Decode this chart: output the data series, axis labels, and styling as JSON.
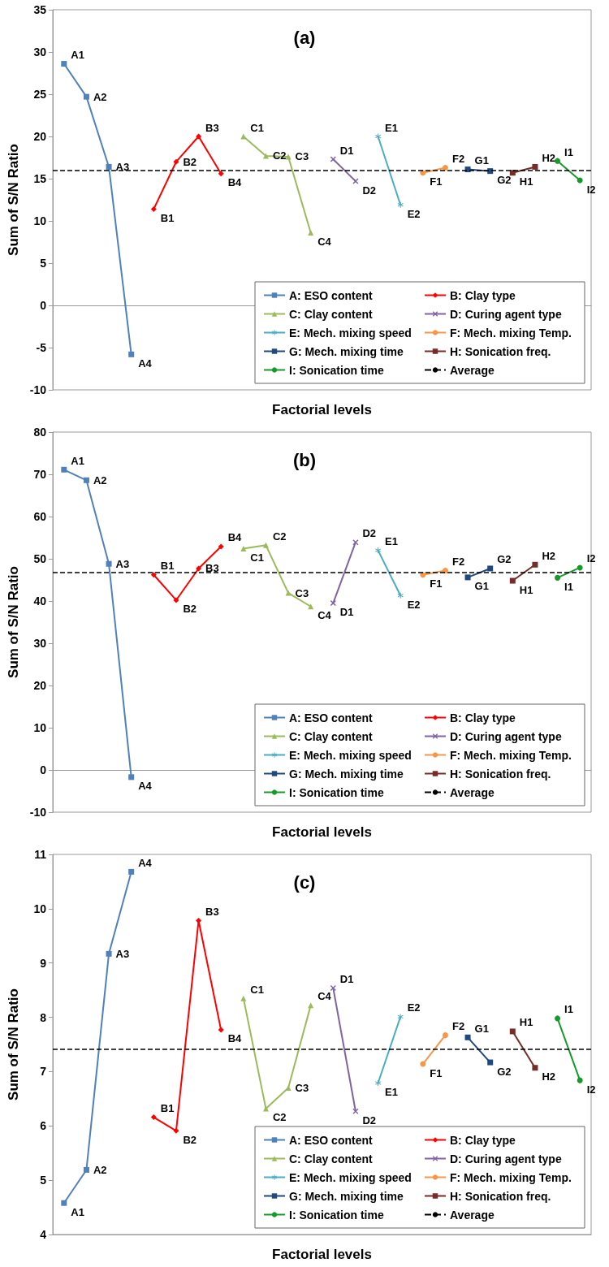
{
  "chart_data": [
    {
      "type": "line",
      "title": "(a)",
      "xlabel": "Factorial levels",
      "ylabel": "Sum of S/N Ratio",
      "tick_labels": "y",
      "legend": "bottom right",
      "categories": [
        null,
        null,
        null,
        null,
        null,
        null,
        null,
        null,
        null,
        null,
        null,
        null,
        null,
        null,
        null,
        null,
        null,
        null,
        null,
        null,
        null,
        null,
        null,
        null
      ],
      "ylim": [
        -10,
        35
      ],
      "yticks": [
        -10,
        -5,
        0,
        5,
        10,
        15,
        20,
        25,
        30,
        35
      ],
      "series": [
        {
          "name": "A: ESO content",
          "color": "#4f81bd",
          "marker": "square",
          "values": [
            28.6,
            24.7,
            16.4,
            -5.8,
            null,
            null,
            null,
            null,
            null,
            null,
            null,
            null,
            null,
            null,
            null,
            null,
            null,
            null,
            null,
            null,
            null,
            null,
            null,
            null
          ],
          "value_labels": [
            "A1",
            "A2",
            "A3",
            "A4",
            null,
            null,
            null,
            null,
            null,
            null,
            null,
            null,
            null,
            null,
            null,
            null,
            null,
            null,
            null,
            null,
            null,
            null,
            null,
            null
          ]
        },
        {
          "name": "B: Clay type",
          "color": "#ff0000",
          "marker": "diamond",
          "values": [
            null,
            null,
            null,
            null,
            11.4,
            17.0,
            20.0,
            15.6,
            null,
            null,
            null,
            null,
            null,
            null,
            null,
            null,
            null,
            null,
            null,
            null,
            null,
            null,
            null,
            null
          ],
          "value_labels": [
            null,
            null,
            null,
            null,
            "B1",
            "B2",
            "B3",
            "B4",
            null,
            null,
            null,
            null,
            null,
            null,
            null,
            null,
            null,
            null,
            null,
            null,
            null,
            null,
            null,
            null
          ]
        },
        {
          "name": "C: Clay content",
          "color": "#9bbb59",
          "marker": "triangle",
          "values": [
            null,
            null,
            null,
            null,
            null,
            null,
            null,
            null,
            20.0,
            17.7,
            17.6,
            8.6,
            null,
            null,
            null,
            null,
            null,
            null,
            null,
            null,
            null,
            null,
            null,
            null
          ],
          "value_labels": [
            null,
            null,
            null,
            null,
            null,
            null,
            null,
            null,
            "C1",
            "C2",
            "C3",
            "C4",
            null,
            null,
            null,
            null,
            null,
            null,
            null,
            null,
            null,
            null,
            null,
            null
          ]
        },
        {
          "name": "D: Curing agent type",
          "color": "#8064a2",
          "marker": "cross",
          "values": [
            null,
            null,
            null,
            null,
            null,
            null,
            null,
            null,
            null,
            null,
            null,
            null,
            17.3,
            14.7,
            null,
            null,
            null,
            null,
            null,
            null,
            null,
            null,
            null,
            null
          ],
          "value_labels": [
            null,
            null,
            null,
            null,
            null,
            null,
            null,
            null,
            null,
            null,
            null,
            null,
            "D1",
            "D2",
            null,
            null,
            null,
            null,
            null,
            null,
            null,
            null,
            null,
            null
          ]
        },
        {
          "name": "E: Mech. mixing speed",
          "color": "#4bacc6",
          "marker": "star",
          "values": [
            null,
            null,
            null,
            null,
            null,
            null,
            null,
            null,
            null,
            null,
            null,
            null,
            null,
            null,
            20.0,
            11.9,
            null,
            null,
            null,
            null,
            null,
            null,
            null,
            null
          ],
          "value_labels": [
            null,
            null,
            null,
            null,
            null,
            null,
            null,
            null,
            null,
            null,
            null,
            null,
            null,
            null,
            "E1",
            "E2",
            null,
            null,
            null,
            null,
            null,
            null,
            null,
            null
          ]
        },
        {
          "name": "F: Mech. mixing Temp.",
          "color": "#f79646",
          "marker": "circle",
          "values": [
            null,
            null,
            null,
            null,
            null,
            null,
            null,
            null,
            null,
            null,
            null,
            null,
            null,
            null,
            null,
            null,
            15.7,
            16.3,
            null,
            null,
            null,
            null,
            null,
            null
          ],
          "value_labels": [
            null,
            null,
            null,
            null,
            null,
            null,
            null,
            null,
            null,
            null,
            null,
            null,
            null,
            null,
            null,
            null,
            "F1",
            "F2",
            null,
            null,
            null,
            null,
            null,
            null
          ]
        },
        {
          "name": "G: Mech. mixing time",
          "color": "#1f497d",
          "marker": "square",
          "values": [
            null,
            null,
            null,
            null,
            null,
            null,
            null,
            null,
            null,
            null,
            null,
            null,
            null,
            null,
            null,
            null,
            null,
            null,
            16.1,
            15.9,
            null,
            null,
            null,
            null
          ],
          "value_labels": [
            null,
            null,
            null,
            null,
            null,
            null,
            null,
            null,
            null,
            null,
            null,
            null,
            null,
            null,
            null,
            null,
            null,
            null,
            "G1",
            "G2",
            null,
            null,
            null,
            null
          ]
        },
        {
          "name": "H: Sonication freq.",
          "color": "#772c2a",
          "marker": "square",
          "values": [
            null,
            null,
            null,
            null,
            null,
            null,
            null,
            null,
            null,
            null,
            null,
            null,
            null,
            null,
            null,
            null,
            null,
            null,
            null,
            null,
            15.7,
            16.4,
            null,
            null
          ],
          "value_labels": [
            null,
            null,
            null,
            null,
            null,
            null,
            null,
            null,
            null,
            null,
            null,
            null,
            null,
            null,
            null,
            null,
            null,
            null,
            null,
            null,
            "H1",
            "H2",
            null,
            null
          ]
        },
        {
          "name": "I: Sonication time",
          "color": "#169a2a",
          "marker": "circle",
          "values": [
            null,
            null,
            null,
            null,
            null,
            null,
            null,
            null,
            null,
            null,
            null,
            null,
            null,
            null,
            null,
            null,
            null,
            null,
            null,
            null,
            null,
            null,
            17.1,
            14.8
          ],
          "value_labels": [
            null,
            null,
            null,
            null,
            null,
            null,
            null,
            null,
            null,
            null,
            null,
            null,
            null,
            null,
            null,
            null,
            null,
            null,
            null,
            null,
            null,
            null,
            "I1",
            "I2"
          ]
        }
      ],
      "ref_lines": [
        {
          "axis": "y",
          "value": 16.0,
          "label": "Average",
          "color": "#000000",
          "line_style": "dashed"
        }
      ]
    },
    {
      "type": "line",
      "title": "(b)",
      "xlabel": "Factorial levels",
      "ylabel": "Sum of S/N Ratio",
      "tick_labels": "y",
      "legend": "bottom right",
      "categories": [
        null,
        null,
        null,
        null,
        null,
        null,
        null,
        null,
        null,
        null,
        null,
        null,
        null,
        null,
        null,
        null,
        null,
        null,
        null,
        null,
        null,
        null,
        null,
        null
      ],
      "ylim": [
        -10,
        80
      ],
      "yticks": [
        -10,
        0,
        10,
        20,
        30,
        40,
        50,
        60,
        70,
        80
      ],
      "series": [
        {
          "name": "A: ESO content",
          "color": "#4f81bd",
          "marker": "square",
          "values": [
            71.1,
            68.6,
            48.8,
            -1.7,
            null,
            null,
            null,
            null,
            null,
            null,
            null,
            null,
            null,
            null,
            null,
            null,
            null,
            null,
            null,
            null,
            null,
            null,
            null,
            null
          ],
          "value_labels": [
            "A1",
            "A2",
            "A3",
            "A4",
            null,
            null,
            null,
            null,
            null,
            null,
            null,
            null,
            null,
            null,
            null,
            null,
            null,
            null,
            null,
            null,
            null,
            null,
            null,
            null
          ]
        },
        {
          "name": "B: Clay type",
          "color": "#ff0000",
          "marker": "diamond",
          "values": [
            null,
            null,
            null,
            null,
            46.2,
            40.2,
            47.7,
            52.9,
            null,
            null,
            null,
            null,
            null,
            null,
            null,
            null,
            null,
            null,
            null,
            null,
            null,
            null,
            null,
            null
          ],
          "value_labels": [
            null,
            null,
            null,
            null,
            "B1",
            "B2",
            "B3",
            "B4",
            null,
            null,
            null,
            null,
            null,
            null,
            null,
            null,
            null,
            null,
            null,
            null,
            null,
            null,
            null,
            null
          ]
        },
        {
          "name": "C: Clay content",
          "color": "#9bbb59",
          "marker": "triangle",
          "values": [
            null,
            null,
            null,
            null,
            null,
            null,
            null,
            null,
            52.4,
            53.2,
            41.9,
            38.7,
            null,
            null,
            null,
            null,
            null,
            null,
            null,
            null,
            null,
            null,
            null,
            null
          ],
          "value_labels": [
            null,
            null,
            null,
            null,
            null,
            null,
            null,
            null,
            "C1",
            "C2",
            "C3",
            "C4",
            null,
            null,
            null,
            null,
            null,
            null,
            null,
            null,
            null,
            null,
            null,
            null
          ]
        },
        {
          "name": "D: Curing agent type",
          "color": "#8064a2",
          "marker": "cross",
          "values": [
            null,
            null,
            null,
            null,
            null,
            null,
            null,
            null,
            null,
            null,
            null,
            null,
            39.5,
            53.9,
            null,
            null,
            null,
            null,
            null,
            null,
            null,
            null,
            null,
            null
          ],
          "value_labels": [
            null,
            null,
            null,
            null,
            null,
            null,
            null,
            null,
            null,
            null,
            null,
            null,
            "D1",
            "D2",
            null,
            null,
            null,
            null,
            null,
            null,
            null,
            null,
            null,
            null
          ]
        },
        {
          "name": "E: Mech. mixing speed",
          "color": "#4bacc6",
          "marker": "star",
          "values": [
            null,
            null,
            null,
            null,
            null,
            null,
            null,
            null,
            null,
            null,
            null,
            null,
            null,
            null,
            52.0,
            41.3,
            null,
            null,
            null,
            null,
            null,
            null,
            null,
            null
          ],
          "value_labels": [
            null,
            null,
            null,
            null,
            null,
            null,
            null,
            null,
            null,
            null,
            null,
            null,
            null,
            null,
            "E1",
            "E2",
            null,
            null,
            null,
            null,
            null,
            null,
            null,
            null
          ]
        },
        {
          "name": "F: Mech. mixing Temp.",
          "color": "#f79646",
          "marker": "circle",
          "values": [
            null,
            null,
            null,
            null,
            null,
            null,
            null,
            null,
            null,
            null,
            null,
            null,
            null,
            null,
            null,
            null,
            46.2,
            47.2,
            null,
            null,
            null,
            null,
            null,
            null
          ],
          "value_labels": [
            null,
            null,
            null,
            null,
            null,
            null,
            null,
            null,
            null,
            null,
            null,
            null,
            null,
            null,
            null,
            null,
            "F1",
            "F2",
            null,
            null,
            null,
            null,
            null,
            null
          ]
        },
        {
          "name": "G: Mech. mixing time",
          "color": "#1f497d",
          "marker": "square",
          "values": [
            null,
            null,
            null,
            null,
            null,
            null,
            null,
            null,
            null,
            null,
            null,
            null,
            null,
            null,
            null,
            null,
            null,
            null,
            45.6,
            47.7,
            null,
            null,
            null,
            null
          ],
          "value_labels": [
            null,
            null,
            null,
            null,
            null,
            null,
            null,
            null,
            null,
            null,
            null,
            null,
            null,
            null,
            null,
            null,
            null,
            null,
            "G1",
            "G2",
            null,
            null,
            null,
            null
          ]
        },
        {
          "name": "H: Sonication freq.",
          "color": "#772c2a",
          "marker": "square",
          "values": [
            null,
            null,
            null,
            null,
            null,
            null,
            null,
            null,
            null,
            null,
            null,
            null,
            null,
            null,
            null,
            null,
            null,
            null,
            null,
            null,
            44.8,
            48.6,
            null,
            null
          ],
          "value_labels": [
            null,
            null,
            null,
            null,
            null,
            null,
            null,
            null,
            null,
            null,
            null,
            null,
            null,
            null,
            null,
            null,
            null,
            null,
            null,
            null,
            "H1",
            "H2",
            null,
            null
          ]
        },
        {
          "name": "I: Sonication time",
          "color": "#169a2a",
          "marker": "circle",
          "values": [
            null,
            null,
            null,
            null,
            null,
            null,
            null,
            null,
            null,
            null,
            null,
            null,
            null,
            null,
            null,
            null,
            null,
            null,
            null,
            null,
            null,
            null,
            45.5,
            47.9
          ],
          "value_labels": [
            null,
            null,
            null,
            null,
            null,
            null,
            null,
            null,
            null,
            null,
            null,
            null,
            null,
            null,
            null,
            null,
            null,
            null,
            null,
            null,
            null,
            null,
            "I1",
            "I2"
          ]
        }
      ],
      "ref_lines": [
        {
          "axis": "y",
          "value": 46.7,
          "label": "Average",
          "color": "#000000",
          "line_style": "dashed"
        }
      ]
    },
    {
      "type": "line",
      "title": "(c)",
      "xlabel": "Factorial levels",
      "ylabel": "Sum of S/N Ratio",
      "tick_labels": "y",
      "legend": "bottom right",
      "categories": [
        null,
        null,
        null,
        null,
        null,
        null,
        null,
        null,
        null,
        null,
        null,
        null,
        null,
        null,
        null,
        null,
        null,
        null,
        null,
        null,
        null,
        null,
        null,
        null
      ],
      "ylim": [
        4,
        11
      ],
      "yticks": [
        4,
        5,
        6,
        7,
        8,
        9,
        10,
        11
      ],
      "series": [
        {
          "name": "A: ESO content",
          "color": "#4f81bd",
          "marker": "square",
          "values": [
            4.58,
            5.19,
            9.17,
            10.68,
            null,
            null,
            null,
            null,
            null,
            null,
            null,
            null,
            null,
            null,
            null,
            null,
            null,
            null,
            null,
            null,
            null,
            null,
            null,
            null
          ],
          "value_labels": [
            "A1",
            "A2",
            "A3",
            "A4",
            null,
            null,
            null,
            null,
            null,
            null,
            null,
            null,
            null,
            null,
            null,
            null,
            null,
            null,
            null,
            null,
            null,
            null,
            null,
            null
          ]
        },
        {
          "name": "B: Clay type",
          "color": "#ff0000",
          "marker": "diamond",
          "values": [
            null,
            null,
            null,
            null,
            6.16,
            5.91,
            9.78,
            7.77,
            null,
            null,
            null,
            null,
            null,
            null,
            null,
            null,
            null,
            null,
            null,
            null,
            null,
            null,
            null,
            null
          ],
          "value_labels": [
            null,
            null,
            null,
            null,
            "B1",
            "B2",
            "B3",
            "B4",
            null,
            null,
            null,
            null,
            null,
            null,
            null,
            null,
            null,
            null,
            null,
            null,
            null,
            null,
            null,
            null
          ]
        },
        {
          "name": "C: Clay content",
          "color": "#9bbb59",
          "marker": "triangle",
          "values": [
            null,
            null,
            null,
            null,
            null,
            null,
            null,
            null,
            8.35,
            6.32,
            6.7,
            8.22,
            null,
            null,
            null,
            null,
            null,
            null,
            null,
            null,
            null,
            null,
            null,
            null
          ],
          "value_labels": [
            null,
            null,
            null,
            null,
            null,
            null,
            null,
            null,
            "C1",
            "C2",
            "C3",
            "C4",
            null,
            null,
            null,
            null,
            null,
            null,
            null,
            null,
            null,
            null,
            null,
            null
          ]
        },
        {
          "name": "D: Curing agent type",
          "color": "#8064a2",
          "marker": "cross",
          "values": [
            null,
            null,
            null,
            null,
            null,
            null,
            null,
            null,
            null,
            null,
            null,
            null,
            8.54,
            6.27,
            null,
            null,
            null,
            null,
            null,
            null,
            null,
            null,
            null,
            null
          ],
          "value_labels": [
            null,
            null,
            null,
            null,
            null,
            null,
            null,
            null,
            null,
            null,
            null,
            null,
            "D1",
            "D2",
            null,
            null,
            null,
            null,
            null,
            null,
            null,
            null,
            null,
            null
          ]
        },
        {
          "name": "E: Mech. mixing speed",
          "color": "#4bacc6",
          "marker": "star",
          "values": [
            null,
            null,
            null,
            null,
            null,
            null,
            null,
            null,
            null,
            null,
            null,
            null,
            null,
            null,
            6.79,
            8.01,
            null,
            null,
            null,
            null,
            null,
            null,
            null,
            null
          ],
          "value_labels": [
            null,
            null,
            null,
            null,
            null,
            null,
            null,
            null,
            null,
            null,
            null,
            null,
            null,
            null,
            "E1",
            "E2",
            null,
            null,
            null,
            null,
            null,
            null,
            null,
            null
          ]
        },
        {
          "name": "F: Mech. mixing Temp.",
          "color": "#f79646",
          "marker": "circle",
          "values": [
            null,
            null,
            null,
            null,
            null,
            null,
            null,
            null,
            null,
            null,
            null,
            null,
            null,
            null,
            null,
            null,
            7.14,
            7.67,
            null,
            null,
            null,
            null,
            null,
            null
          ],
          "value_labels": [
            null,
            null,
            null,
            null,
            null,
            null,
            null,
            null,
            null,
            null,
            null,
            null,
            null,
            null,
            null,
            null,
            "F1",
            "F2",
            null,
            null,
            null,
            null,
            null,
            null
          ]
        },
        {
          "name": "G: Mech. mixing time",
          "color": "#1f497d",
          "marker": "square",
          "values": [
            null,
            null,
            null,
            null,
            null,
            null,
            null,
            null,
            null,
            null,
            null,
            null,
            null,
            null,
            null,
            null,
            null,
            null,
            7.63,
            7.17,
            null,
            null,
            null,
            null
          ],
          "value_labels": [
            null,
            null,
            null,
            null,
            null,
            null,
            null,
            null,
            null,
            null,
            null,
            null,
            null,
            null,
            null,
            null,
            null,
            null,
            "G1",
            "G2",
            null,
            null,
            null,
            null
          ]
        },
        {
          "name": "H: Sonication freq.",
          "color": "#772c2a",
          "marker": "square",
          "values": [
            null,
            null,
            null,
            null,
            null,
            null,
            null,
            null,
            null,
            null,
            null,
            null,
            null,
            null,
            null,
            null,
            null,
            null,
            null,
            null,
            7.74,
            7.07,
            null,
            null
          ],
          "value_labels": [
            null,
            null,
            null,
            null,
            null,
            null,
            null,
            null,
            null,
            null,
            null,
            null,
            null,
            null,
            null,
            null,
            null,
            null,
            null,
            null,
            "H1",
            "H2",
            null,
            null
          ]
        },
        {
          "name": "I: Sonication time",
          "color": "#169a2a",
          "marker": "circle",
          "values": [
            null,
            null,
            null,
            null,
            null,
            null,
            null,
            null,
            null,
            null,
            null,
            null,
            null,
            null,
            null,
            null,
            null,
            null,
            null,
            null,
            null,
            null,
            7.98,
            6.84
          ],
          "value_labels": [
            null,
            null,
            null,
            null,
            null,
            null,
            null,
            null,
            null,
            null,
            null,
            null,
            null,
            null,
            null,
            null,
            null,
            null,
            null,
            null,
            null,
            null,
            "I1",
            "I2"
          ]
        }
      ],
      "ref_lines": [
        {
          "axis": "y",
          "value": 7.41,
          "label": "Average",
          "color": "#000000",
          "line_style": "dashed"
        }
      ]
    }
  ]
}
